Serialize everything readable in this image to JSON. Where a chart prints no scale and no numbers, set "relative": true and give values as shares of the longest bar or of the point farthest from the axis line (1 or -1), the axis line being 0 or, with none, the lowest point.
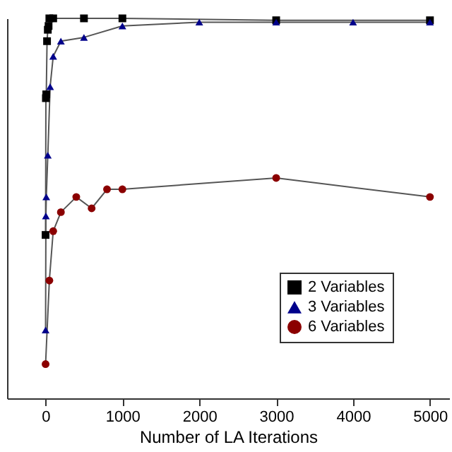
{
  "chart_data": {
    "type": "line",
    "xlabel": "Number of LA Iterations",
    "relative": true,
    "tick_labels": "x",
    "xlim": [
      -500,
      5250
    ],
    "xticks": [
      0,
      1000,
      2000,
      3000,
      4000,
      5000
    ],
    "legend": "bottom right",
    "grid": false,
    "line_style": "solid",
    "series": [
      {
        "name": "2 Variables",
        "color": "#000000",
        "marker": "square",
        "x": [
          1,
          5,
          10,
          20,
          30,
          40,
          50,
          100,
          500,
          1000,
          3000,
          5000
        ],
        "values": [
          0.43,
          0.79,
          0.8,
          0.94,
          0.97,
          0.98,
          1,
          1,
          1,
          1,
          0.995,
          0.995
        ]
      },
      {
        "name": "3 Variables",
        "color": "#00008b",
        "marker": "triangle",
        "x": [
          1,
          5,
          10,
          30,
          60,
          100,
          200,
          500,
          1000,
          2000,
          3000,
          4000,
          5000
        ],
        "values": [
          0.18,
          0.48,
          0.53,
          0.64,
          0.82,
          0.9,
          0.94,
          0.95,
          0.98,
          0.99,
          0.99,
          0.99,
          0.99
        ]
      },
      {
        "name": "6 Variables",
        "color": "#8b0000",
        "marker": "circle",
        "x": [
          1,
          50,
          100,
          200,
          400,
          600,
          800,
          1000,
          3000,
          5000
        ],
        "values": [
          0.09,
          0.31,
          0.44,
          0.49,
          0.53,
          0.5,
          0.55,
          0.55,
          0.58,
          0.53
        ]
      }
    ]
  }
}
